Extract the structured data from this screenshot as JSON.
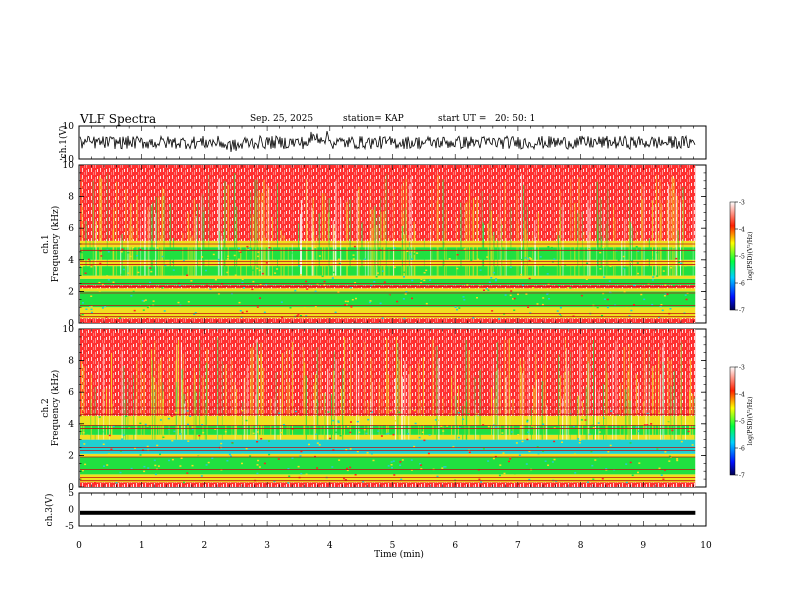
{
  "header": {
    "title": "VLF Spectra",
    "date": "Sep. 25, 2025",
    "station": "station= KAP",
    "start_ut": "start UT =   20: 50: 1"
  },
  "colors": {
    "red": "#ff2020",
    "yellow": "#f0e020",
    "green": "#20e040",
    "cyan": "#20d0d0",
    "blue": "#1040ff",
    "navy": "#000060"
  },
  "chart_data": [
    {
      "type": "line",
      "name": "ch1-waveform",
      "ylabel": "ch.1(V)",
      "ylim": [
        -10,
        10
      ],
      "yticks": [
        "10",
        "-10"
      ],
      "xlim": [
        0,
        10
      ],
      "series": [
        {
          "name": "ch.1",
          "description_values": "noise waveform roughly between -5 and 5 V"
        }
      ]
    },
    {
      "type": "heatmap",
      "name": "ch1-spectrogram",
      "ylabel": "ch.1 Frequency (kHz)",
      "ylim": [
        0,
        10
      ],
      "yticks": [
        "0",
        "2",
        "4",
        "6",
        "8",
        "10"
      ],
      "xlim": [
        0,
        9.83
      ],
      "bands": [
        {
          "from": 0.0,
          "to": 0.3,
          "level": "red"
        },
        {
          "from": 0.3,
          "to": 1.0,
          "level": "yellow"
        },
        {
          "from": 1.0,
          "to": 2.0,
          "level": "green"
        },
        {
          "from": 2.0,
          "to": 2.2,
          "level": "yellow"
        },
        {
          "from": 2.2,
          "to": 2.4,
          "level": "red"
        },
        {
          "from": 2.4,
          "to": 2.8,
          "level": "green"
        },
        {
          "from": 2.8,
          "to": 3.0,
          "level": "yellow"
        },
        {
          "from": 3.0,
          "to": 3.6,
          "level": "green"
        },
        {
          "from": 3.6,
          "to": 4.0,
          "level": "yellow"
        },
        {
          "from": 4.0,
          "to": 4.8,
          "level": "green"
        },
        {
          "from": 4.8,
          "to": 5.2,
          "level": "yellow"
        },
        {
          "from": 5.2,
          "to": 10.0,
          "level": "red"
        }
      ],
      "colorbar": {
        "label": "log(PSD)(V²/Hz)",
        "ticks": [
          "-3",
          "-4",
          "-5",
          "-6",
          "-7"
        ],
        "range": [
          -7,
          -3
        ]
      }
    },
    {
      "type": "heatmap",
      "name": "ch2-spectrogram",
      "ylabel": "ch.2 Frequency (kHz)",
      "ylim": [
        0,
        10
      ],
      "yticks": [
        "0",
        "2",
        "4",
        "6",
        "8",
        "10"
      ],
      "xlim": [
        0,
        9.83
      ],
      "bands": [
        {
          "from": 0.0,
          "to": 0.3,
          "level": "red"
        },
        {
          "from": 0.3,
          "to": 0.8,
          "level": "yellow"
        },
        {
          "from": 0.8,
          "to": 1.9,
          "level": "green"
        },
        {
          "from": 1.9,
          "to": 2.1,
          "level": "yellow"
        },
        {
          "from": 2.1,
          "to": 3.0,
          "level": "cyan"
        },
        {
          "from": 3.0,
          "to": 3.3,
          "level": "yellow"
        },
        {
          "from": 3.3,
          "to": 3.9,
          "level": "green"
        },
        {
          "from": 3.9,
          "to": 4.5,
          "level": "yellow"
        },
        {
          "from": 4.5,
          "to": 10.0,
          "level": "red"
        }
      ],
      "colorbar": {
        "label": "log(PSD)(V²/Hz)",
        "ticks": [
          "-3",
          "-4",
          "-5",
          "-6",
          "-7"
        ],
        "range": [
          -7,
          -3
        ]
      }
    },
    {
      "type": "line",
      "name": "ch3-waveform",
      "ylabel": "ch.3(V)",
      "ylim": [
        -5,
        5
      ],
      "yticks": [
        "5",
        "0",
        "-5"
      ],
      "xlim": [
        0,
        10
      ],
      "series": [
        {
          "name": "ch.3",
          "description_values": "near-constant signal at about -1 V"
        }
      ]
    }
  ],
  "xaxis": {
    "label": "Time (min)",
    "ticks": [
      "0",
      "1",
      "2",
      "3",
      "4",
      "5",
      "6",
      "7",
      "8",
      "9",
      "10"
    ],
    "range": [
      0,
      10
    ]
  }
}
